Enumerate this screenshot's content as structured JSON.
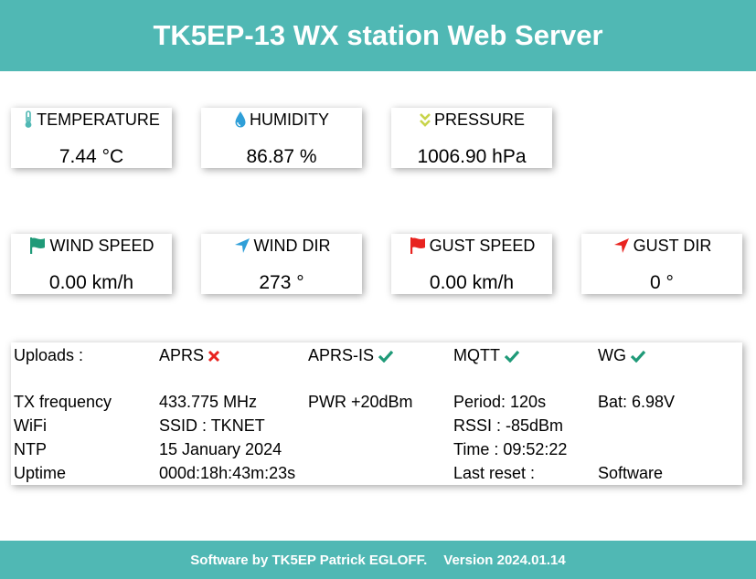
{
  "header": {
    "title": "TK5EP-13 WX station Web Server"
  },
  "sensors": {
    "temperature": {
      "label": "TEMPERATURE",
      "value": "7.44 °C",
      "icon": "thermometer-icon",
      "color": "#50b8b4"
    },
    "humidity": {
      "label": "HUMIDITY",
      "value": "86.87 %",
      "icon": "water-drop-icon",
      "color": "#2f9fd8"
    },
    "pressure": {
      "label": "PRESSURE",
      "value": "1006.90 hPa",
      "icon": "double-chevron-down-icon",
      "color": "#c8d44a"
    },
    "wind_speed": {
      "label": "WIND SPEED",
      "value": "0.00 km/h",
      "icon": "flag-icon",
      "color": "#1f9a78"
    },
    "wind_dir": {
      "label": "WIND DIR",
      "value": "273 °",
      "icon": "location-arrow-icon",
      "color": "#2f9fd8"
    },
    "gust_speed": {
      "label": "GUST SPEED",
      "value": "0.00 km/h",
      "icon": "flag-icon",
      "color": "#e8231f"
    },
    "gust_dir": {
      "label": "GUST DIR",
      "value": "0 °",
      "icon": "location-arrow-icon",
      "color": "#e8231f"
    }
  },
  "uploads": {
    "label": "Uploads :",
    "items": [
      {
        "name": "APRS",
        "status": "fail",
        "icon": "cross-icon",
        "color": "#e8231f"
      },
      {
        "name": "APRS-IS",
        "status": "ok",
        "icon": "check-icon",
        "color": "#1f9a78"
      },
      {
        "name": "MQTT",
        "status": "ok",
        "icon": "check-icon",
        "color": "#1f9a78"
      },
      {
        "name": "WG",
        "status": "ok",
        "icon": "check-icon",
        "color": "#1f9a78"
      }
    ]
  },
  "status": {
    "tx": {
      "label": "TX frequency",
      "freq": "433.775 MHz",
      "power": "PWR +20dBm",
      "period": "Period: 120s",
      "battery": "Bat: 6.98V"
    },
    "wifi": {
      "label": "WiFi",
      "ssid": "SSID : TKNET",
      "rssi": "RSSI : -85dBm"
    },
    "ntp": {
      "label": "NTP",
      "date": "15 January 2024",
      "time": "Time : 09:52:22"
    },
    "uptime": {
      "label": "Uptime",
      "value": "000d:18h:43m:23s",
      "reset_label": "Last reset :",
      "reset_value": "Software"
    }
  },
  "footer": {
    "author": "Software by  TK5EP Patrick EGLOFF.",
    "version": "Version 2024.01.14"
  }
}
